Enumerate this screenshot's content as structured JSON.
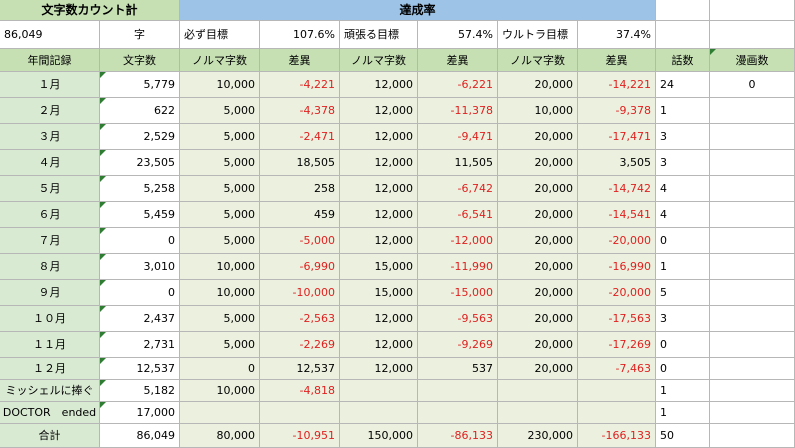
{
  "title": "文字数カウント計",
  "achievement_header": "達成率",
  "total_chars_top": "86,049",
  "char_unit": "字",
  "targets": [
    {
      "label": "必ず目標",
      "value": "107.6%"
    },
    {
      "label": "頑張る目標",
      "value": "57.4%"
    },
    {
      "label": "ウルトラ目標",
      "value": "37.4%"
    }
  ],
  "columns": [
    "年間記録",
    "文字数",
    "ノルマ字数",
    "差異",
    "ノルマ字数",
    "差異",
    "ノルマ字数",
    "差異",
    "話数",
    "漫画数"
  ],
  "rows": [
    {
      "label": "１月",
      "cells": [
        "5,779",
        "10,000",
        "-4,221",
        "12,000",
        "-6,221",
        "20,000",
        "-14,221",
        "24",
        "0"
      ]
    },
    {
      "label": "２月",
      "cells": [
        "622",
        "5,000",
        "-4,378",
        "12,000",
        "-11,378",
        "10,000",
        "-9,378",
        "1",
        ""
      ]
    },
    {
      "label": "３月",
      "cells": [
        "2,529",
        "5,000",
        "-2,471",
        "12,000",
        "-9,471",
        "20,000",
        "-17,471",
        "3",
        ""
      ]
    },
    {
      "label": "４月",
      "cells": [
        "23,505",
        "5,000",
        "18,505",
        "12,000",
        "11,505",
        "20,000",
        "3,505",
        "3",
        ""
      ]
    },
    {
      "label": "５月",
      "cells": [
        "5,258",
        "5,000",
        "258",
        "12,000",
        "-6,742",
        "20,000",
        "-14,742",
        "4",
        ""
      ]
    },
    {
      "label": "６月",
      "cells": [
        "5,459",
        "5,000",
        "459",
        "12,000",
        "-6,541",
        "20,000",
        "-14,541",
        "4",
        ""
      ]
    },
    {
      "label": "７月",
      "cells": [
        "0",
        "5,000",
        "-5,000",
        "12,000",
        "-12,000",
        "20,000",
        "-20,000",
        "0",
        ""
      ]
    },
    {
      "label": "８月",
      "cells": [
        "3,010",
        "10,000",
        "-6,990",
        "15,000",
        "-11,990",
        "20,000",
        "-16,990",
        "1",
        ""
      ]
    },
    {
      "label": "９月",
      "cells": [
        "0",
        "10,000",
        "-10,000",
        "15,000",
        "-15,000",
        "20,000",
        "-20,000",
        "5",
        ""
      ]
    },
    {
      "label": "１０月",
      "cells": [
        "2,437",
        "5,000",
        "-2,563",
        "12,000",
        "-9,563",
        "20,000",
        "-17,563",
        "3",
        ""
      ]
    },
    {
      "label": "１１月",
      "cells": [
        "2,731",
        "5,000",
        "-2,269",
        "12,000",
        "-9,269",
        "20,000",
        "-17,269",
        "0",
        ""
      ]
    },
    {
      "label": "１２月",
      "cells": [
        "12,537",
        "0",
        "12,537",
        "12,000",
        "537",
        "20,000",
        "-7,463",
        "0",
        ""
      ]
    },
    {
      "label": "ミッシェルに捧ぐ",
      "cells": [
        "5,182",
        "10,000",
        "-4,818",
        "",
        "",
        "",
        "",
        "1",
        ""
      ]
    },
    {
      "label": "DOCTOR　ended",
      "cells": [
        "17,000",
        "",
        "",
        "",
        "",
        "",
        "",
        "1",
        ""
      ]
    },
    {
      "label": "合計",
      "cells": [
        "86,049",
        "80,000",
        "-10,951",
        "150,000",
        "-86,133",
        "230,000",
        "-166,133",
        "50",
        ""
      ]
    }
  ]
}
